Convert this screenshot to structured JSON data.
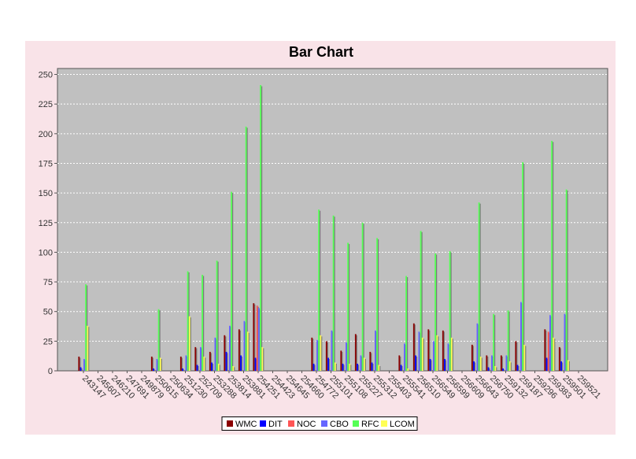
{
  "chart_data": {
    "type": "bar",
    "title": "Bar Chart",
    "xlabel": "",
    "ylabel": "",
    "ylim": [
      0,
      255
    ],
    "yticks": [
      0,
      25,
      50,
      75,
      100,
      125,
      150,
      175,
      200,
      225,
      250
    ],
    "grid": true,
    "legend_position": "bottom",
    "categories": [
      "243147",
      "245607",
      "246210",
      "247691",
      "249879",
      "250615",
      "250634",
      "251230",
      "252709",
      "253288",
      "253814",
      "253881",
      "254251",
      "254423",
      "254645",
      "254660",
      "254772",
      "255101",
      "255108",
      "255227",
      "255312",
      "255403",
      "255541",
      "256510",
      "256549",
      "256599",
      "256609",
      "256643",
      "256750",
      "259132",
      "259187",
      "259296",
      "259383",
      "259501",
      "259521"
    ],
    "series": [
      {
        "name": "WMC",
        "color": "#8b0000",
        "values": [
          12,
          0,
          0,
          0,
          0,
          12,
          0,
          12,
          20,
          16,
          30,
          35,
          57,
          0,
          0,
          0,
          28,
          25,
          17,
          31,
          16,
          0,
          13,
          40,
          35,
          34,
          0,
          22,
          13,
          13,
          25,
          0,
          35,
          20,
          0
        ]
      },
      {
        "name": "DIT",
        "color": "#0000ff",
        "values": [
          3,
          0,
          0,
          0,
          0,
          2,
          0,
          2,
          5,
          7,
          16,
          13,
          11,
          0,
          0,
          0,
          6,
          11,
          6,
          6,
          7,
          0,
          5,
          13,
          10,
          10,
          0,
          8,
          3,
          2,
          5,
          0,
          11,
          8,
          0
        ]
      },
      {
        "name": "NOC",
        "color": "#ff5555",
        "values": [
          0,
          0,
          0,
          0,
          0,
          0,
          0,
          0,
          0,
          0,
          0,
          0,
          55,
          0,
          0,
          0,
          0,
          0,
          0,
          0,
          0,
          0,
          0,
          0,
          0,
          0,
          0,
          0,
          0,
          0,
          0,
          0,
          33,
          0,
          0
        ]
      },
      {
        "name": "CBO",
        "color": "#6666ff",
        "values": [
          10,
          0,
          0,
          0,
          0,
          10,
          0,
          13,
          20,
          28,
          38,
          42,
          53,
          0,
          0,
          0,
          26,
          34,
          24,
          13,
          34,
          0,
          23,
          33,
          25,
          23,
          0,
          40,
          13,
          13,
          58,
          0,
          47,
          48,
          0
        ]
      },
      {
        "name": "RFC",
        "color": "#55ff55",
        "values": [
          73,
          0,
          0,
          0,
          0,
          52,
          0,
          84,
          81,
          93,
          151,
          206,
          241,
          0,
          0,
          0,
          136,
          131,
          108,
          125,
          112,
          0,
          80,
          118,
          99,
          101,
          0,
          142,
          48,
          51,
          176,
          0,
          194,
          153,
          0
        ]
      },
      {
        "name": "LCOM",
        "color": "#ffff55",
        "values": [
          38,
          0,
          0,
          0,
          0,
          11,
          0,
          46,
          12,
          6,
          4,
          33,
          20,
          0,
          0,
          0,
          30,
          7,
          6,
          11,
          5,
          0,
          2,
          28,
          30,
          28,
          0,
          12,
          4,
          8,
          22,
          0,
          28,
          9,
          0
        ]
      }
    ]
  }
}
